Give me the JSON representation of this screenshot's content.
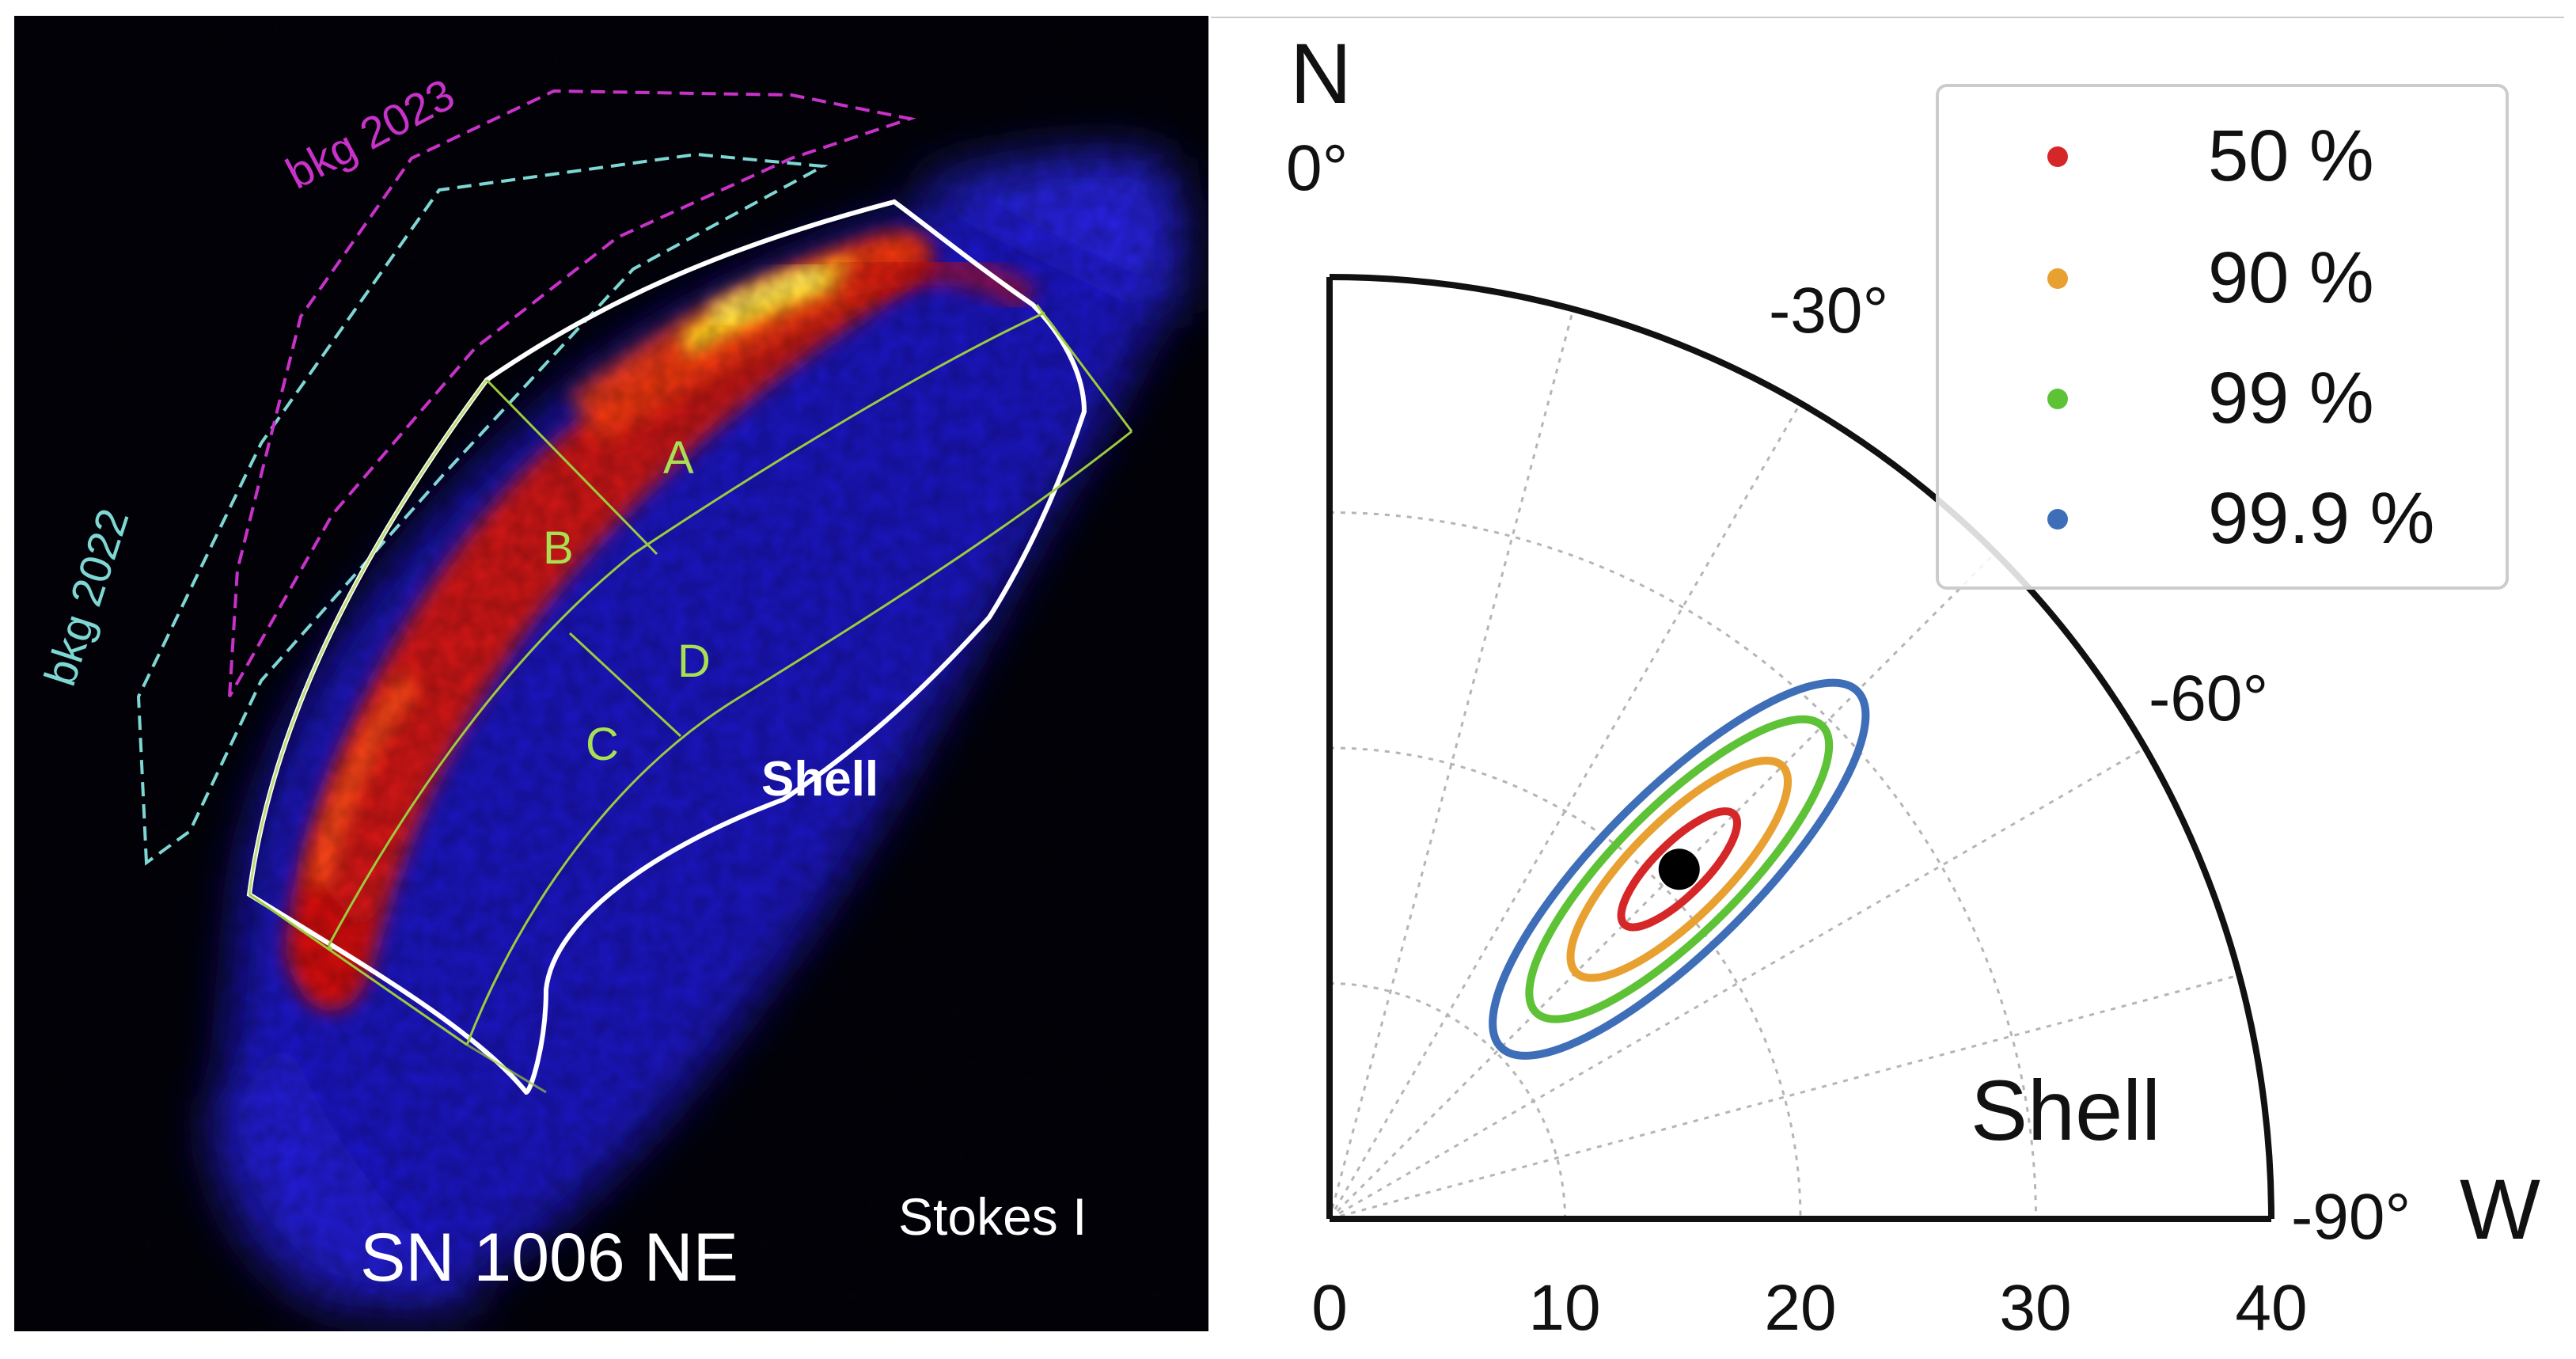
{
  "left_panel": {
    "title": "SN 1006 NE",
    "stokes_label": "Stokes I",
    "shell_label": "Shell",
    "background_labels": [
      "bkg 2022",
      "bkg 2023"
    ],
    "regions": [
      "A",
      "B",
      "C",
      "D"
    ],
    "colors": {
      "bkg_2022": "#7fd7d4",
      "bkg_2023": "#c832c8",
      "region_lines": "#9ccc3c",
      "shell_outline": "#ffffff",
      "region_letters": "#a8e052"
    }
  },
  "chart_data": {
    "type": "polar-contour",
    "title": "",
    "annotation": "Shell",
    "radial_axis": {
      "label": "",
      "range": [
        0,
        40
      ],
      "ticks": [
        "0",
        "10",
        "20",
        "30",
        "40"
      ]
    },
    "angular_axis": {
      "range_deg": [
        0,
        -90
      ],
      "ticks": [
        "0°",
        "-30°",
        "-60°",
        "-90°"
      ],
      "north_label": "N",
      "west_label": "W"
    },
    "best_fit": {
      "pd_percent": 21,
      "angle_deg": -45
    },
    "contours": [
      {
        "level": "50 %",
        "color": "#d62728",
        "pd_semi_axis": 3.3,
        "angle_semi_axis_deg": 5.5
      },
      {
        "level": "90 %",
        "color": "#e8a030",
        "pd_semi_axis": 6.2,
        "angle_semi_axis_deg": 10
      },
      {
        "level": "99 %",
        "color": "#5ec236",
        "pd_semi_axis": 8.6,
        "angle_semi_axis_deg": 13
      },
      {
        "level": "99.9 %",
        "color": "#3f6eb8",
        "pd_semi_axis": 10.7,
        "angle_semi_axis_deg": 16
      }
    ],
    "legend": {
      "position": "top-right",
      "entries": [
        {
          "label": "50 %",
          "color": "#d62728"
        },
        {
          "label": "90 %",
          "color": "#e8a030"
        },
        {
          "label": "99 %",
          "color": "#5ec236"
        },
        {
          "label": "99.9 %",
          "color": "#3f6eb8"
        }
      ]
    }
  }
}
